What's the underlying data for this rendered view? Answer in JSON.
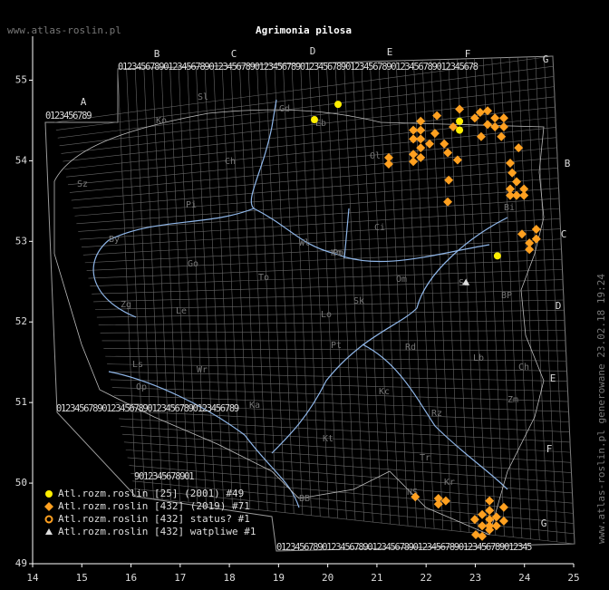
{
  "chart_data": {
    "type": "scatter",
    "title": "Agrimonia pilosa",
    "site": "www.atlas-roslin.pl",
    "side_note": "www.atlas-roslin.pl generowane 23.02.18 19:24",
    "xlim": [
      14,
      25
    ],
    "ylim": [
      49,
      55.5
    ],
    "xticks": [
      14,
      15,
      16,
      17,
      18,
      19,
      20,
      21,
      22,
      23,
      24,
      25
    ],
    "yticks": [
      49,
      50,
      51,
      52,
      53,
      54,
      55
    ],
    "grid_letters": [
      "A",
      "B",
      "C",
      "D",
      "E",
      "F",
      "G",
      "B",
      "C",
      "D",
      "E",
      "F",
      "G"
    ],
    "grid_digits": [
      "0123456789",
      "0123456789012345678901234567890123456789012345678901234567890123456789012345678",
      "0123456789012345678901234567890123456789",
      "01234567890123456789012345678901234567890123456789012345",
      "9012345678901",
      "01234567890123"
    ],
    "regions": [
      "Sl",
      "Ko",
      "Gd",
      "Eb",
      "Ch",
      "Ol",
      "Sz",
      "Pi",
      "By",
      "Go",
      "To",
      "Ci",
      "Bi",
      "Wl",
      "Po",
      "Ko",
      "Om",
      "Zg",
      "Le",
      "Ls",
      "Wr",
      "Op",
      "Ka",
      "Lo",
      "Sk",
      "Pt",
      "Rd",
      "Lb",
      "Si",
      "BP",
      "Ch",
      "Kt",
      "Kc",
      "Zm",
      "Tr",
      "Kr",
      "NS",
      "BB",
      "Rz"
    ],
    "series": [
      {
        "name": "Atl.rozm.roslin [25] (2001) #49",
        "color": "#ffee00",
        "marker": "circle",
        "x": [
          19.73,
          20.21,
          22.68,
          22.68,
          23.45
        ],
        "y": [
          54.51,
          54.7,
          54.49,
          54.38,
          52.82
        ]
      },
      {
        "name": "Atl.rozm.roslin [432] (2019) #71",
        "color": "#ffa020",
        "marker": "diamond",
        "x": [
          21.89,
          21.89,
          21.89,
          21.74,
          21.74,
          22.07,
          22.22,
          22.37,
          22.55,
          22.68,
          22.46,
          22.44,
          22.64,
          22.44,
          22.18,
          21.89,
          21.89,
          21.74,
          21.74,
          21.24,
          21.24,
          22.99,
          23.1,
          23.25,
          23.4,
          23.58,
          23.58,
          23.4,
          23.25,
          23.12,
          23.53,
          23.88,
          23.71,
          23.75,
          23.84,
          23.71,
          23.84,
          23.99,
          23.71,
          23.99,
          24.24,
          24.24,
          24.1,
          23.95,
          24.1,
          21.78,
          22.25,
          22.25,
          22.4,
          23.29,
          23.29,
          23.14,
          23.29,
          23.43,
          23.43,
          23.29,
          23.14,
          22.99,
          23.58,
          23.58,
          23.14,
          23.29,
          23.01
        ],
        "y": [
          54.49,
          54.38,
          54.27,
          54.38,
          54.27,
          54.21,
          54.56,
          54.21,
          54.42,
          54.64,
          53.76,
          53.49,
          54.01,
          54.1,
          54.34,
          54.16,
          54.04,
          53.99,
          54.08,
          54.04,
          53.96,
          54.53,
          54.6,
          54.62,
          54.53,
          54.53,
          54.42,
          54.42,
          54.45,
          54.3,
          54.3,
          54.16,
          53.97,
          53.85,
          53.74,
          53.65,
          53.57,
          53.57,
          53.57,
          53.65,
          53.15,
          53.03,
          52.98,
          53.09,
          52.9,
          49.83,
          49.81,
          49.74,
          49.78,
          49.78,
          49.66,
          49.61,
          49.55,
          49.58,
          49.47,
          49.47,
          49.47,
          49.55,
          49.7,
          49.53,
          49.34,
          49.42,
          49.36
        ]
      },
      {
        "name": "Atl.rozm.roslin [432] status? #1",
        "color": "#ffa020",
        "marker": "ring",
        "x": [],
        "y": []
      },
      {
        "name": "Atl.rozm.roslin [432] watpliwe #1",
        "color": "#dddddd",
        "marker": "triangle",
        "x": [
          22.81
        ],
        "y": [
          52.49
        ]
      }
    ]
  }
}
